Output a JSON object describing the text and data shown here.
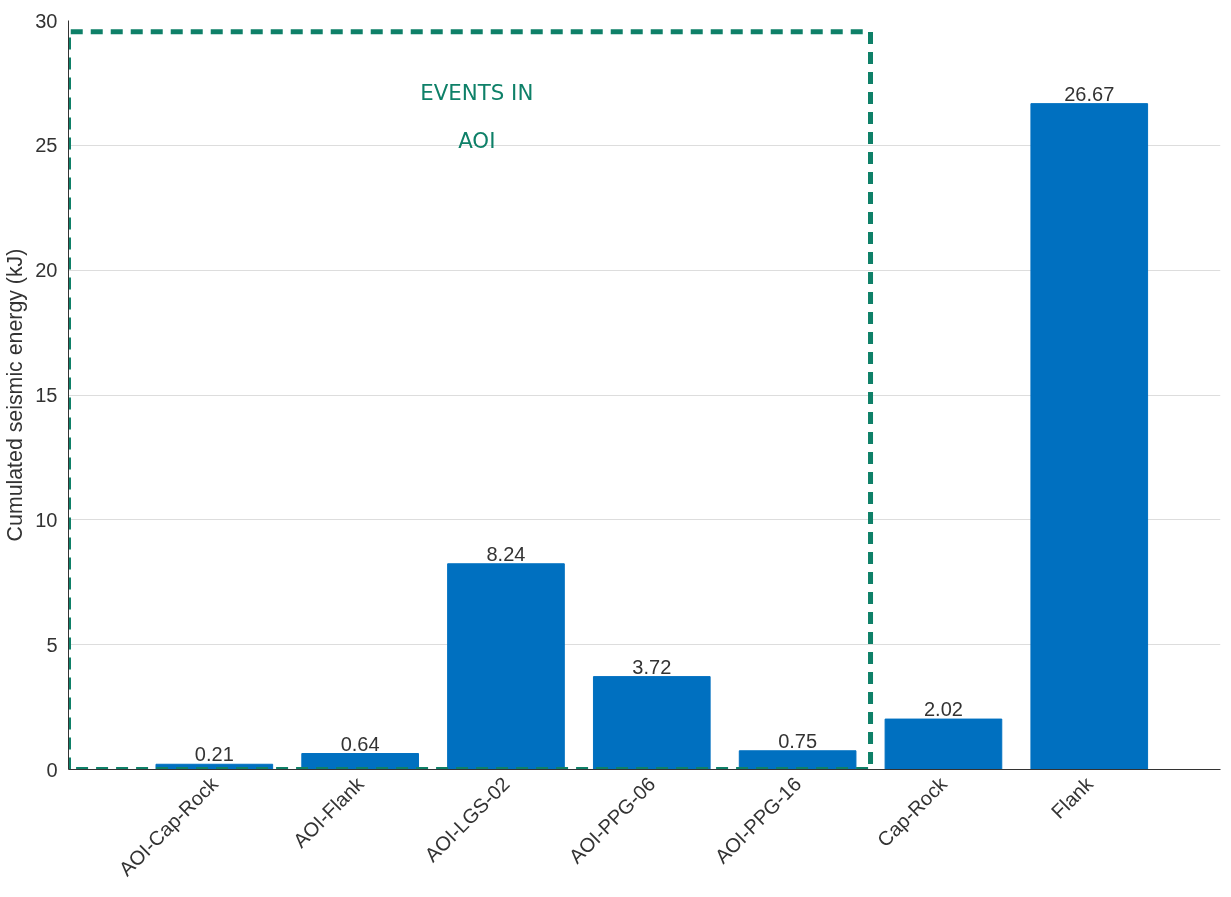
{
  "chart_data": {
    "type": "bar",
    "ylabel": "Cumulated seismic energy (kJ)",
    "categories": [
      "AOI-Cap-Rock",
      "AOI-Flank",
      "AOI-LGS-02",
      "AOI-PPG-06",
      "AOI-PPG-16",
      "Cap-Rock",
      "Flank"
    ],
    "values": [
      0.21,
      0.64,
      8.24,
      3.72,
      0.75,
      2.02,
      26.67
    ],
    "color": "#0070c0",
    "data_labels": true,
    "ylim": [
      0,
      30
    ],
    "yticks": [
      0,
      5,
      10,
      15,
      20,
      25,
      30
    ],
    "grid": "y",
    "annotations": [
      "EVENTS IN\nAOI"
    ]
  }
}
